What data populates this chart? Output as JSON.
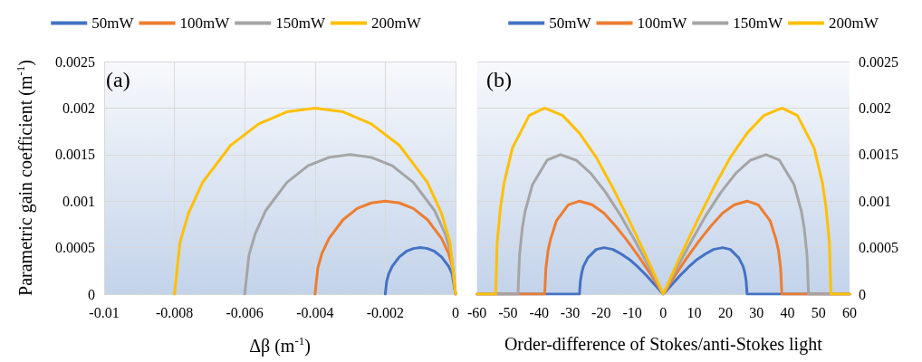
{
  "chart_data": [
    {
      "type": "line",
      "annotations": [
        "(a)"
      ],
      "xlabel": "Δβ (m$^{-1}$)",
      "ylabel": "Parametric gain coefficient (m$^{-1}$)",
      "xlim": [
        -0.01,
        0
      ],
      "xticks": [
        -0.01,
        -0.008,
        -0.006,
        -0.004,
        -0.002,
        0
      ],
      "ylim": [
        0,
        0.0025
      ],
      "yticks": [
        0,
        0.0005,
        0.001,
        0.0015,
        0.002,
        0.0025
      ],
      "grid": true,
      "legend": "top",
      "marker": "none",
      "line_style": "solid",
      "series": [
        {
          "name": "50mW",
          "color": "#4472c4",
          "x": [
            0,
            -0.0001,
            -0.0002,
            -0.0004,
            -0.0006,
            -0.0008,
            -0.001,
            -0.0012,
            -0.0014,
            -0.0016,
            -0.0018,
            -0.0019,
            -0.00196,
            -0.002
          ],
          "values": [
            0,
            0.00022,
            0.0003,
            0.0004,
            0.00046,
            0.00049,
            0.0005,
            0.00049,
            0.00046,
            0.0004,
            0.0003,
            0.00022,
            0.00014,
            0
          ]
        },
        {
          "name": "100mW",
          "color": "#ed7d31",
          "x": [
            0,
            -8e-05,
            -0.0002,
            -0.0004,
            -0.0008,
            -0.0012,
            -0.0016,
            -0.002,
            -0.0024,
            -0.0028,
            -0.0032,
            -0.0036,
            -0.0038,
            -0.00392,
            -0.004
          ],
          "values": [
            0,
            0.00028,
            0.00044,
            0.0006,
            0.0008,
            0.00092,
            0.00098,
            0.001,
            0.00098,
            0.00092,
            0.0008,
            0.0006,
            0.00044,
            0.00028,
            0
          ]
        },
        {
          "name": "150mW",
          "color": "#a5a5a5",
          "x": [
            0,
            -0.00012,
            -0.0003,
            -0.0006,
            -0.0012,
            -0.0018,
            -0.0024,
            -0.003,
            -0.0036,
            -0.0042,
            -0.0048,
            -0.0054,
            -0.0057,
            -0.00588,
            -0.006
          ],
          "values": [
            0,
            0.00042,
            0.00065,
            0.0009,
            0.0012,
            0.00138,
            0.00147,
            0.0015,
            0.00147,
            0.00138,
            0.0012,
            0.0009,
            0.00065,
            0.00042,
            0
          ]
        },
        {
          "name": "200mW",
          "color": "#ffc000",
          "x": [
            0,
            -0.00016,
            -0.0004,
            -0.0008,
            -0.0016,
            -0.0024,
            -0.0032,
            -0.004,
            -0.0048,
            -0.0056,
            -0.0064,
            -0.0072,
            -0.0076,
            -0.00784,
            -0.008
          ],
          "values": [
            0,
            0.00056,
            0.00087,
            0.0012,
            0.0016,
            0.00183,
            0.00196,
            0.002,
            0.00196,
            0.00183,
            0.0016,
            0.0012,
            0.00087,
            0.00056,
            0
          ]
        }
      ]
    },
    {
      "type": "line",
      "annotations": [
        "(b)"
      ],
      "xlabel": "Order-difference of Stokes/anti-Stokes light",
      "xlim": [
        -60,
        60
      ],
      "xticks": [
        -60,
        -50,
        -40,
        -30,
        -20,
        -10,
        0,
        10,
        20,
        30,
        40,
        50,
        60
      ],
      "ylim": [
        0,
        0.0025
      ],
      "yticks": [
        0,
        0.0005,
        0.001,
        0.0015,
        0.002,
        0.0025
      ],
      "grid": "y",
      "legend": "top",
      "marker": "none",
      "line_style": "solid",
      "series": [
        {
          "name": "50mW",
          "color": "#4472c4",
          "x": [
            -60,
            -27,
            -26.7,
            -26.2,
            -25.7,
            -24.3,
            -21.6,
            -19.1,
            -16.2,
            -13.5,
            -10.8,
            -8.1,
            -5.4,
            -2.7,
            0,
            2.7,
            5.4,
            8.1,
            10.8,
            13.5,
            16.2,
            19.1,
            21.6,
            24.3,
            25.7,
            26.2,
            26.7,
            27,
            60
          ],
          "values": [
            0,
            0,
            0.00014,
            0.00024,
            0.0003,
            0.00039,
            0.00048,
            0.0005,
            0.00048,
            0.00043,
            0.00037,
            0.00029,
            0.0002,
            0.0001,
            0,
            0.0001,
            0.0002,
            0.00029,
            0.00037,
            0.00043,
            0.00048,
            0.0005,
            0.00048,
            0.00039,
            0.0003,
            0.00024,
            0.00014,
            0,
            0
          ]
        },
        {
          "name": "100mW",
          "color": "#ed7d31",
          "x": [
            -60,
            -38.2,
            -37.8,
            -37.1,
            -36.3,
            -34.4,
            -30.6,
            -27,
            -22.9,
            -19.1,
            -15.3,
            -11.5,
            -7.6,
            -3.8,
            0,
            3.8,
            7.6,
            11.5,
            15.3,
            19.1,
            22.9,
            27,
            30.6,
            34.4,
            36.3,
            37.1,
            37.8,
            38.2,
            60
          ],
          "values": [
            0,
            0,
            0.00028,
            0.00047,
            0.00059,
            0.00079,
            0.00096,
            0.001,
            0.00096,
            0.00087,
            0.00073,
            0.00057,
            0.00039,
            0.0002,
            0,
            0.0002,
            0.00039,
            0.00057,
            0.00073,
            0.00087,
            0.00096,
            0.001,
            0.00096,
            0.00079,
            0.00059,
            0.00047,
            0.00028,
            0,
            0
          ]
        },
        {
          "name": "150mW",
          "color": "#a5a5a5",
          "x": [
            -60,
            -46.8,
            -46.3,
            -45.4,
            -44.5,
            -42.1,
            -37.4,
            -33.1,
            -28.1,
            -23.4,
            -18.7,
            -14,
            -9.4,
            -4.7,
            0,
            4.7,
            9.4,
            14,
            18.7,
            23.4,
            28.1,
            33.1,
            37.4,
            42.1,
            44.5,
            45.4,
            46.3,
            46.8,
            60
          ],
          "values": [
            0,
            0,
            0.00042,
            0.00071,
            0.00089,
            0.00118,
            0.00144,
            0.0015,
            0.00144,
            0.0013,
            0.0011,
            0.00086,
            0.00059,
            0.0003,
            0,
            0.0003,
            0.00059,
            0.00086,
            0.0011,
            0.0013,
            0.00144,
            0.0015,
            0.00144,
            0.00118,
            0.00089,
            0.00071,
            0.00042,
            0,
            0
          ]
        },
        {
          "name": "200mW",
          "color": "#ffc000",
          "x": [
            -60,
            -54,
            -53.5,
            -52.4,
            -51.3,
            -48.6,
            -43.2,
            -38.2,
            -32.4,
            -27,
            -21.6,
            -16.2,
            -10.8,
            -5.4,
            0,
            5.4,
            10.8,
            16.2,
            21.6,
            27,
            32.4,
            38.2,
            43.2,
            48.6,
            51.3,
            52.4,
            53.5,
            54,
            60
          ],
          "values": [
            0,
            0,
            0.00056,
            0.00094,
            0.00119,
            0.00157,
            0.00192,
            0.002,
            0.00192,
            0.00173,
            0.00147,
            0.00114,
            0.00078,
            0.0004,
            0,
            0.0004,
            0.00078,
            0.00114,
            0.00147,
            0.00173,
            0.00192,
            0.002,
            0.00192,
            0.00157,
            0.00119,
            0.00094,
            0.00056,
            0,
            0
          ]
        }
      ]
    }
  ]
}
